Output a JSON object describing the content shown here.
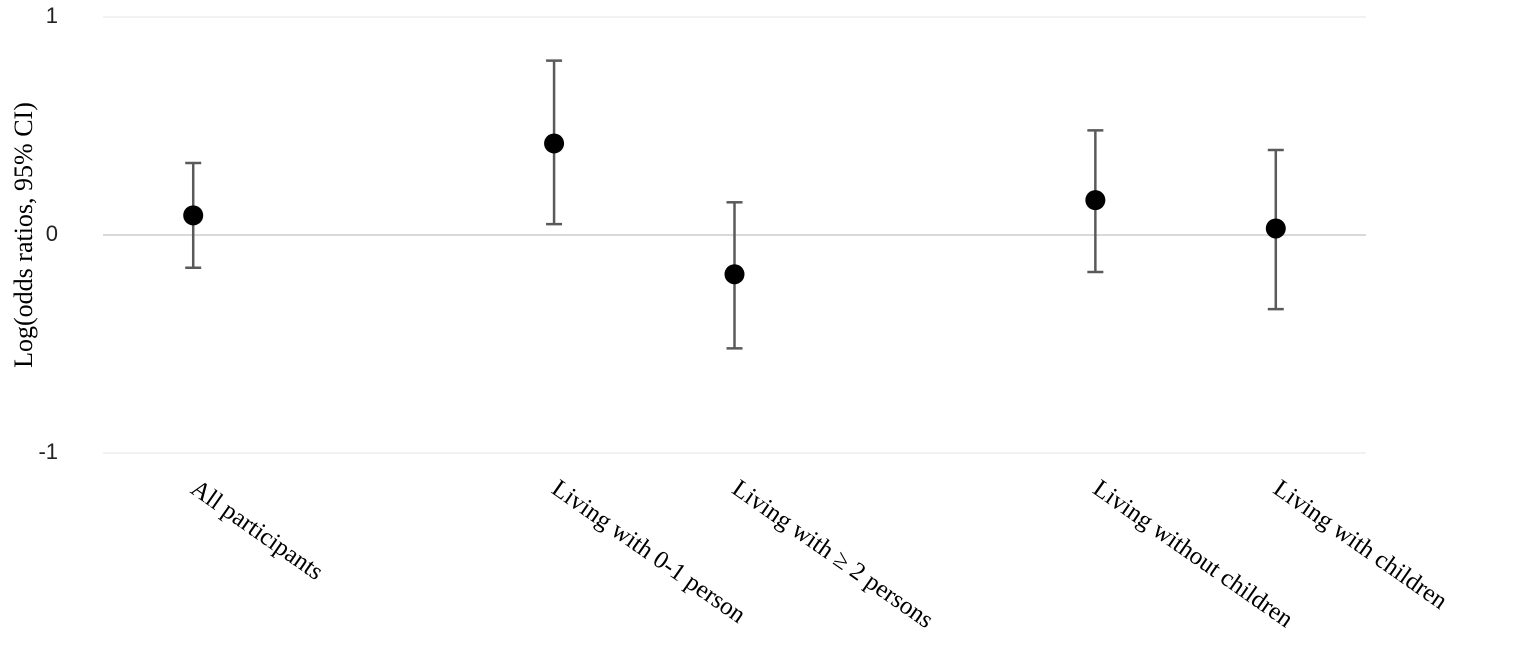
{
  "chart_data": {
    "type": "errorbar",
    "y_label": "Log(odds ratios, 95% CI)",
    "categories": [
      "All participants",
      null,
      "Living with 0-1 person",
      "Living with ≥ 2 persons",
      null,
      "Living without children",
      "Living with children"
    ],
    "series": [
      {
        "color": "#000000",
        "error_color": "#5a5a5a",
        "values": [
          0.09,
          null,
          0.42,
          -0.18,
          null,
          0.16,
          0.03
        ],
        "ci_lower": [
          -0.15,
          null,
          0.05,
          -0.52,
          null,
          -0.17,
          -0.34
        ],
        "ci_upper": [
          0.33,
          null,
          0.8,
          0.15,
          null,
          0.48,
          0.39
        ]
      }
    ],
    "ylim": [
      -1,
      1
    ],
    "yticks": [
      -1,
      0,
      1
    ],
    "grid": true
  }
}
